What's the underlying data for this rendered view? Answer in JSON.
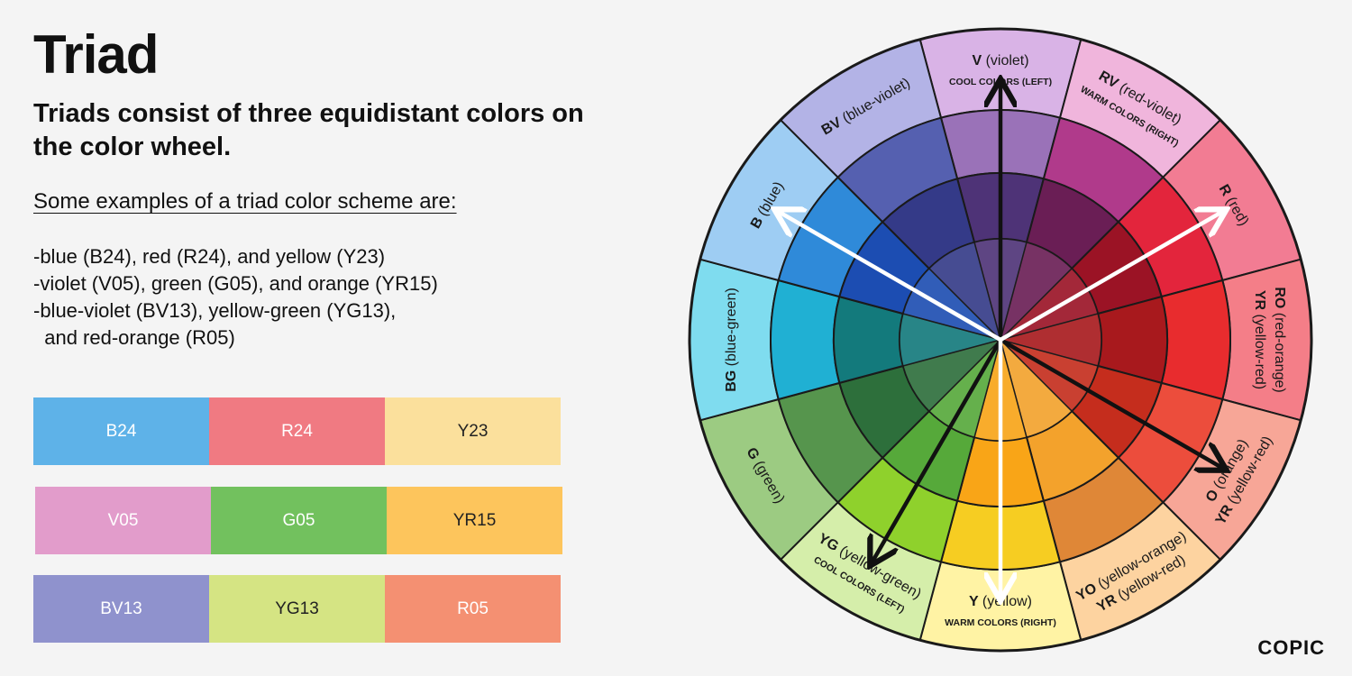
{
  "title": "Triad",
  "subtitle": "Triads consist of three equidistant colors on the color wheel.",
  "examples_heading": "Some examples of a triad color scheme are:",
  "examples": [
    "-blue (B24), red (R24), and yellow (Y23)",
    "-violet (V05), green (G05), and orange (YR15)",
    "-blue-violet (BV13), yellow-green (YG13),",
    "  and red-orange (R05)"
  ],
  "swatch_rows": [
    [
      {
        "label": "B24",
        "color": "#5eb2e8",
        "text_color": "#ffffff"
      },
      {
        "label": "R24",
        "color": "#f07a82",
        "text_color": "#ffffff"
      },
      {
        "label": "Y23",
        "color": "#fbe09c",
        "text_color": "#222222"
      }
    ],
    [
      {
        "label": "V05",
        "color": "#e29ccb",
        "text_color": "#ffffff"
      },
      {
        "label": "G05",
        "color": "#72c15e",
        "text_color": "#ffffff"
      },
      {
        "label": "YR15",
        "color": "#fdc55c",
        "text_color": "#222222"
      }
    ],
    [
      {
        "label": "BV13",
        "color": "#8f92cd",
        "text_color": "#ffffff"
      },
      {
        "label": "YG13",
        "color": "#d5e483",
        "text_color": "#222222"
      },
      {
        "label": "R05",
        "color": "#f49072",
        "text_color": "#ffffff"
      }
    ]
  ],
  "wheel": {
    "segments": [
      {
        "code": "V",
        "name": "(violet)",
        "note": "COOL COLORS (LEFT)",
        "colors": [
          "#d9b3e6",
          "#9a72b8",
          "#4e3377"
        ]
      },
      {
        "code": "RV",
        "name": "(red-violet)",
        "note": "WARM COLORS (RIGHT)",
        "colors": [
          "#f0b5dc",
          "#b03a8b",
          "#6a1e55"
        ]
      },
      {
        "code": "R",
        "name": "(red)",
        "note": "",
        "colors": [
          "#f27c93",
          "#e3253c",
          "#9b1325"
        ]
      },
      {
        "code": "RO",
        "name": "(red-orange)",
        "code2": "YR",
        "name2": "(yellow-red)",
        "note": "",
        "colors": [
          "#f47e88",
          "#e82c2e",
          "#a8191d"
        ]
      },
      {
        "code": "O",
        "name": "(orange)",
        "code2": "YR",
        "name2": "(yellow-red)",
        "note": "",
        "colors": [
          "#f7a697",
          "#ec4d3c",
          "#c52d1d"
        ]
      },
      {
        "code": "YO",
        "name": "(yellow-orange)",
        "code2": "YR",
        "name2": "(yellow-red)",
        "note": "",
        "colors": [
          "#fdd3a0",
          "#df8737",
          "#f3a22c"
        ]
      },
      {
        "code": "Y",
        "name": "(yellow)",
        "note": "WARM COLORS (RIGHT)",
        "colors": [
          "#fff3a4",
          "#f6cd22",
          "#f9a517"
        ]
      },
      {
        "code": "YG",
        "name": "(yellow-green)",
        "note": "COOL COLORS (LEFT)",
        "colors": [
          "#d5eeaa",
          "#8fd12c",
          "#56a93a"
        ]
      },
      {
        "code": "G",
        "name": "(green)",
        "note": "",
        "colors": [
          "#9ccb82",
          "#56954d",
          "#2d6f3b"
        ]
      },
      {
        "code": "BG",
        "name": "(blue-green)",
        "note": "",
        "colors": [
          "#7fdcef",
          "#20b0d3",
          "#137a7c"
        ]
      },
      {
        "code": "B",
        "name": "(blue)",
        "note": "",
        "colors": [
          "#9ecdf3",
          "#2f8ad9",
          "#1c4db2"
        ]
      },
      {
        "code": "BV",
        "name": "(blue-violet)",
        "note": "",
        "colors": [
          "#b3b3e6",
          "#5560b0",
          "#343a88"
        ]
      }
    ],
    "arrows": [
      {
        "segment": "V",
        "color": "#111111"
      },
      {
        "segment": "YG",
        "color": "#111111"
      },
      {
        "segment": "O",
        "color": "#111111"
      },
      {
        "segment": "B",
        "color": "#ffffff"
      },
      {
        "segment": "R",
        "color": "#ffffff"
      },
      {
        "segment": "Y",
        "color": "#ffffff"
      }
    ]
  },
  "logo": "COPIC"
}
